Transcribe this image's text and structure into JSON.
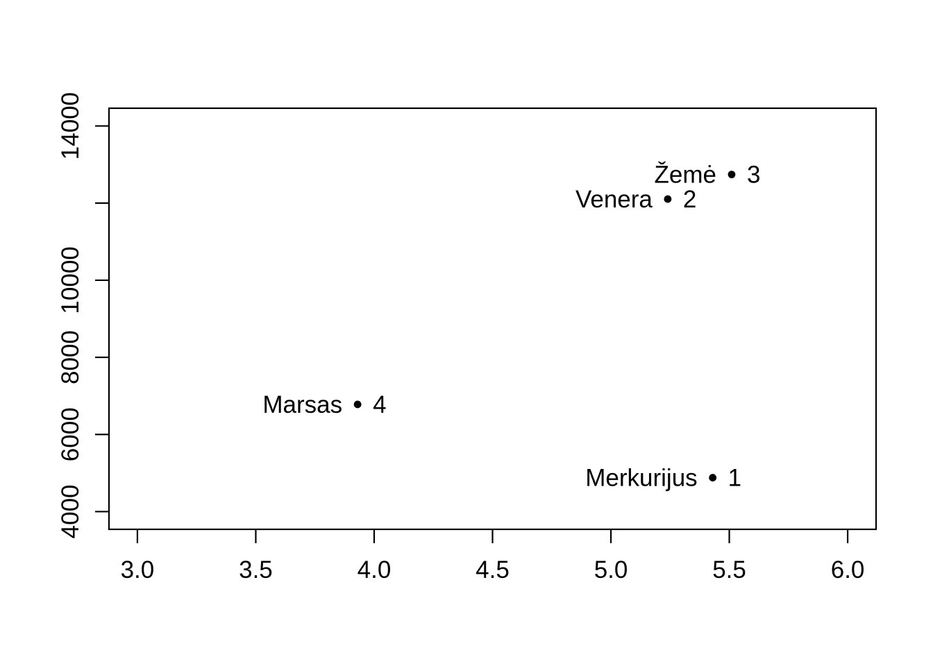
{
  "chart_data": {
    "type": "scatter",
    "title": "",
    "xlabel": "",
    "ylabel": "",
    "background": "#ffffff",
    "axis_color": "#000000",
    "point_color": "#000000",
    "grid": false,
    "legend": "none",
    "xlim": [
      2.88,
      6.12
    ],
    "ylim": [
      3540,
      14460
    ],
    "x_ticks": [
      3.0,
      3.5,
      4.0,
      4.5,
      5.0,
      5.5,
      6.0
    ],
    "x_tick_labels": [
      "3.0",
      "3.5",
      "4.0",
      "4.5",
      "5.0",
      "5.5",
      "6.0"
    ],
    "y_ticks": [
      4000,
      6000,
      8000,
      10000,
      12000,
      14000
    ],
    "y_tick_labels": [
      "4000",
      "6000",
      "8000",
      "10000",
      "",
      "14000"
    ],
    "points": [
      {
        "name": "Merkurijus",
        "number": "1",
        "x": 5.43,
        "y": 4879
      },
      {
        "name": "Venera",
        "number": "2",
        "x": 5.24,
        "y": 12104
      },
      {
        "name": "Žemė",
        "number": "3",
        "x": 5.51,
        "y": 12742
      },
      {
        "name": "Marsas",
        "number": "4",
        "x": 3.93,
        "y": 6779
      }
    ]
  }
}
